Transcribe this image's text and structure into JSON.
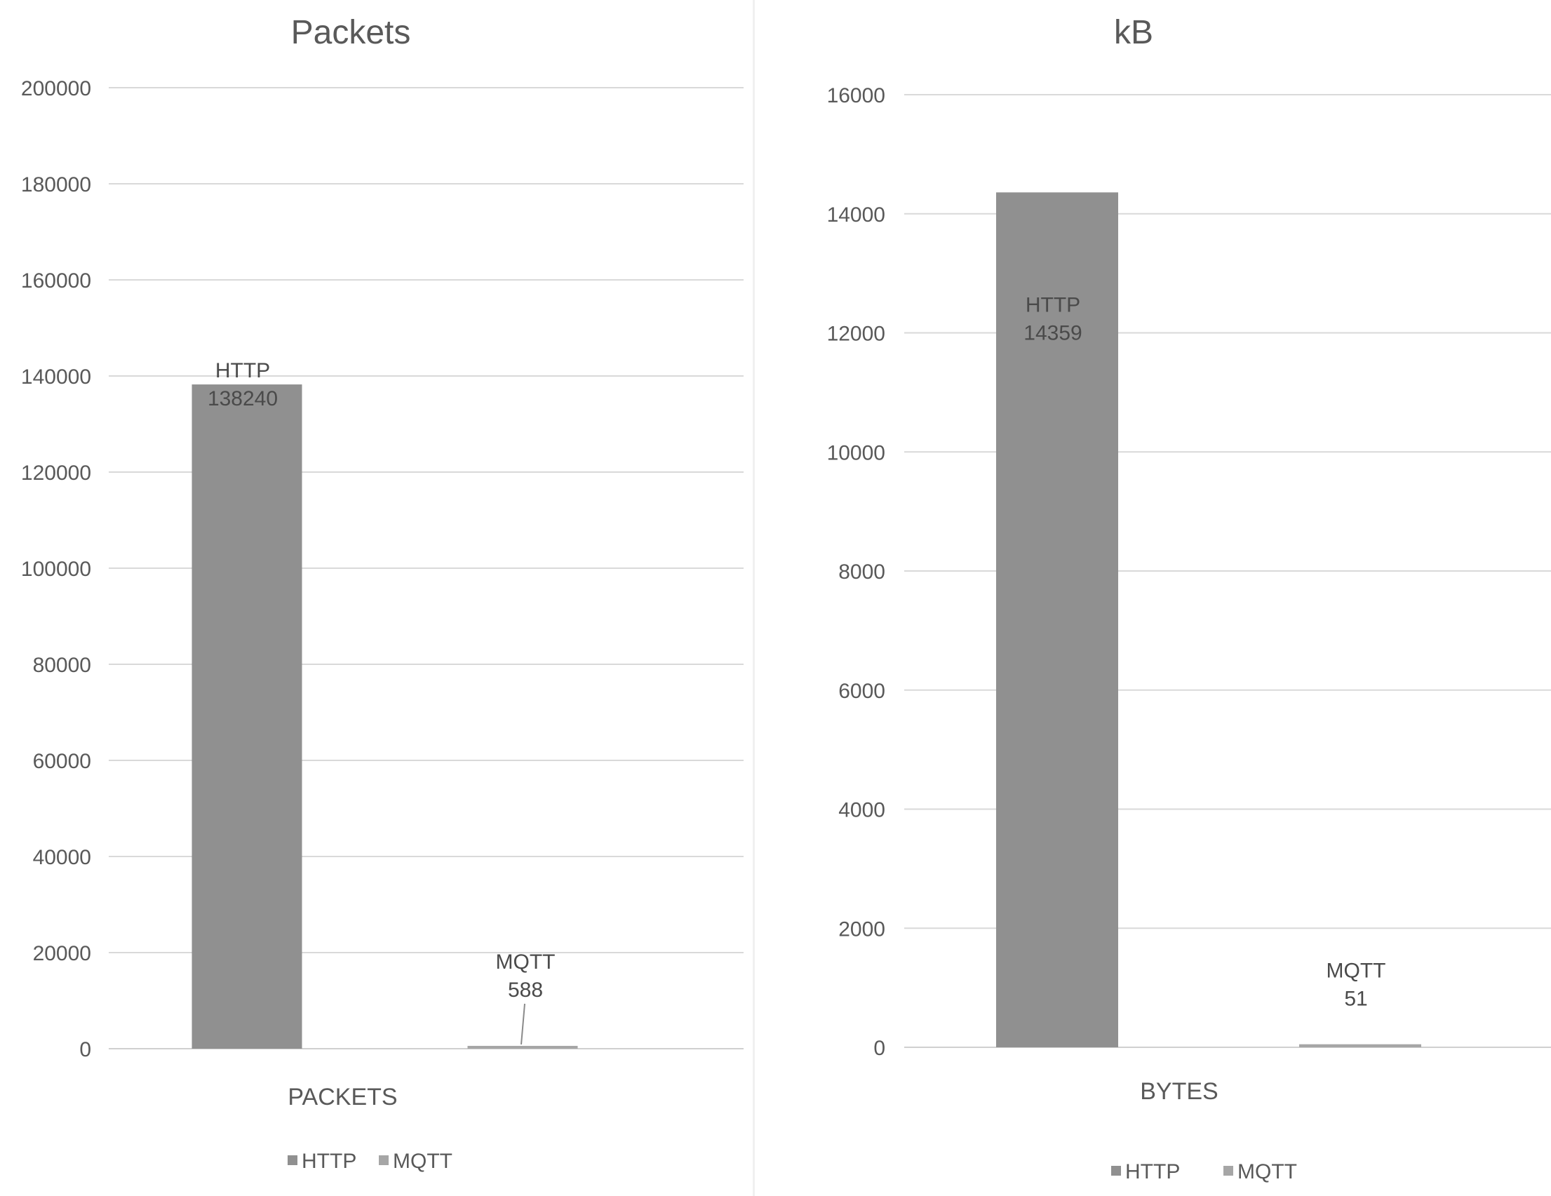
{
  "colors": {
    "HTTP": "#909090",
    "MQTT": "#a6a6a6",
    "grid": "#d9d9d9",
    "text": "#595959"
  },
  "chart_data": [
    {
      "type": "bar",
      "title": "Packets",
      "categories": [
        "PACKETS"
      ],
      "xlabel": "PACKETS",
      "series": [
        {
          "name": "HTTP",
          "values": [
            138240
          ]
        },
        {
          "name": "MQTT",
          "values": [
            588
          ]
        }
      ],
      "data_labels": [
        {
          "series": "HTTP",
          "category": "HTTP",
          "value": "138240"
        },
        {
          "series": "MQTT",
          "category": "MQTT",
          "value": "588"
        }
      ],
      "ylim": [
        0,
        200000
      ],
      "yticks": [
        "0",
        "20000",
        "40000",
        "60000",
        "80000",
        "100000",
        "120000",
        "140000",
        "160000",
        "180000",
        "200000"
      ],
      "grid": true,
      "legend": {
        "position": "bottom",
        "entries": [
          "HTTP",
          "MQTT"
        ]
      }
    },
    {
      "type": "bar",
      "title": "kB",
      "categories": [
        "BYTES"
      ],
      "xlabel": "BYTES",
      "series": [
        {
          "name": "HTTP",
          "values": [
            14359
          ]
        },
        {
          "name": "MQTT",
          "values": [
            51
          ]
        }
      ],
      "data_labels": [
        {
          "series": "HTTP",
          "category": "HTTP",
          "value": "14359"
        },
        {
          "series": "MQTT",
          "category": "MQTT",
          "value": "51"
        }
      ],
      "ylim": [
        0,
        16000
      ],
      "yticks": [
        "0",
        "2000",
        "4000",
        "6000",
        "8000",
        "10000",
        "12000",
        "14000",
        "16000"
      ],
      "grid": true,
      "legend": {
        "position": "bottom",
        "entries": [
          "HTTP",
          "MQTT"
        ]
      }
    }
  ]
}
